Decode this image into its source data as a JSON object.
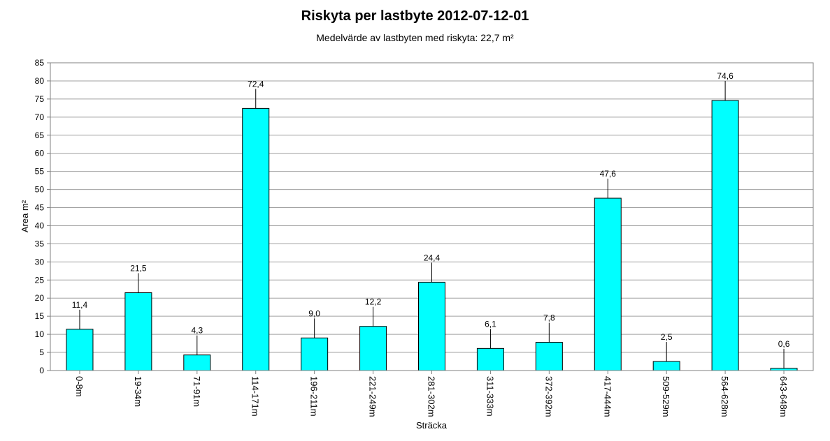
{
  "chart_data": {
    "type": "bar",
    "title": "Riskyta per lastbyte 2012-07-12-01",
    "subtitle": "Medelvärde av lastbyten med riskyta: 22,7 m²",
    "xlabel": "Sträcka",
    "ylabel": "Area m²",
    "ylim": [
      0,
      85
    ],
    "yticks": [
      "0",
      "5",
      "10",
      "15",
      "20",
      "25",
      "30",
      "35",
      "40",
      "45",
      "50",
      "55",
      "60",
      "65",
      "70",
      "75",
      "80",
      "85"
    ],
    "grid": true,
    "categories": [
      "0-8m",
      "19-34m",
      "71-91m",
      "114-171m",
      "196-211m",
      "221-249m",
      "281-302m",
      "311-333m",
      "372-392m",
      "417-444m",
      "509-529m",
      "564-628m",
      "643-648m"
    ],
    "values": [
      11.4,
      21.5,
      4.3,
      72.4,
      9.0,
      12.2,
      24.4,
      6.1,
      7.8,
      47.6,
      2.5,
      74.6,
      0.6
    ],
    "data_labels": [
      "11,4",
      "21,5",
      "4,3",
      "72,4",
      "9,0",
      "12,2",
      "24,4",
      "6,1",
      "7,8",
      "47,6",
      "2,5",
      "74,6",
      "0,6"
    ],
    "bar_color": "#00ffff"
  }
}
